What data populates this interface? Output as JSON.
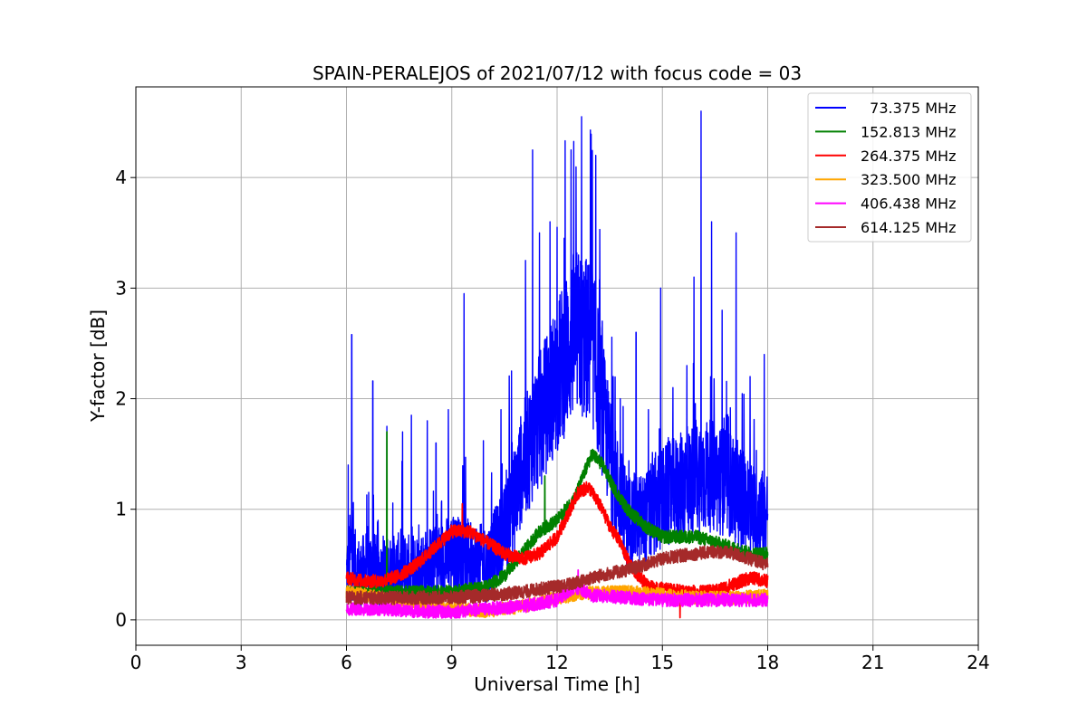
{
  "chart_data": {
    "type": "line",
    "title": "SPAIN-PERALEJOS of 2021/07/12 with focus code = 03",
    "xlabel": "Universal Time [h]",
    "ylabel": "Y-factor [dB]",
    "xlim": [
      0,
      24
    ],
    "ylim": [
      -0.23,
      4.82
    ],
    "xticks": [
      0,
      3,
      6,
      9,
      12,
      15,
      18,
      21,
      24
    ],
    "yticks": [
      0,
      1,
      2,
      3,
      4
    ],
    "grid": true,
    "legend_position": "upper right",
    "series": [
      {
        "name": "  73.375 MHz",
        "color": "#0000ff",
        "x": [
          6.0,
          6.1,
          6.2,
          6.4,
          6.6,
          6.8,
          7.0,
          7.5,
          8.0,
          8.5,
          9.0,
          9.5,
          10.0,
          10.5,
          10.8,
          11.0,
          11.5,
          12.0,
          12.5,
          13.0,
          13.3,
          13.6,
          14.0,
          14.5,
          15.0,
          15.5,
          16.0,
          16.5,
          17.0,
          17.5,
          18.0
        ],
        "values": [
          0.4,
          0.6,
          0.5,
          0.4,
          0.5,
          0.45,
          0.4,
          0.45,
          0.45,
          0.5,
          0.6,
          0.55,
          0.5,
          0.8,
          1.1,
          1.4,
          1.8,
          2.2,
          2.6,
          2.5,
          1.9,
          1.3,
          0.9,
          0.9,
          1.1,
          1.2,
          1.3,
          1.3,
          1.2,
          1.0,
          0.9
        ],
        "spikes": [
          [
            6.05,
            1.4
          ],
          [
            6.15,
            2.58
          ],
          [
            6.75,
            2.16
          ],
          [
            6.9,
            0.9
          ],
          [
            7.15,
            1.75
          ],
          [
            7.6,
            1.7
          ],
          [
            7.85,
            1.85
          ],
          [
            8.3,
            1.8
          ],
          [
            8.55,
            1.6
          ],
          [
            8.9,
            1.9
          ],
          [
            9.35,
            2.95
          ],
          [
            9.9,
            1.62
          ],
          [
            10.4,
            1.9
          ],
          [
            10.7,
            2.25
          ],
          [
            11.1,
            3.25
          ],
          [
            11.3,
            4.25
          ],
          [
            11.5,
            3.5
          ],
          [
            11.8,
            3.6
          ],
          [
            12.0,
            3.55
          ],
          [
            12.2,
            3.45
          ],
          [
            12.4,
            4.25
          ],
          [
            12.7,
            4.55
          ],
          [
            12.95,
            4.43
          ],
          [
            13.1,
            4.2
          ],
          [
            13.6,
            2.2
          ],
          [
            13.8,
            2.0
          ],
          [
            14.25,
            2.6
          ],
          [
            14.6,
            1.9
          ],
          [
            14.95,
            3.0
          ],
          [
            15.3,
            2.1
          ],
          [
            15.7,
            2.3
          ],
          [
            15.9,
            3.1
          ],
          [
            16.1,
            4.6
          ],
          [
            16.4,
            3.6
          ],
          [
            16.7,
            2.8
          ],
          [
            17.1,
            3.5
          ],
          [
            17.5,
            2.2
          ],
          [
            17.9,
            2.4
          ]
        ]
      },
      {
        "name": "152.813 MHz",
        "color": "#008000",
        "x": [
          6.0,
          7.0,
          8.0,
          9.0,
          10.0,
          10.5,
          11.0,
          11.5,
          12.0,
          12.5,
          12.8,
          13.0,
          13.3,
          13.6,
          14.0,
          14.5,
          15.0,
          15.5,
          16.0,
          16.5,
          17.0,
          17.5,
          18.0
        ],
        "values": [
          0.25,
          0.25,
          0.25,
          0.25,
          0.3,
          0.4,
          0.6,
          0.8,
          0.9,
          1.1,
          1.35,
          1.5,
          1.4,
          1.2,
          1.0,
          0.85,
          0.75,
          0.75,
          0.75,
          0.7,
          0.65,
          0.6,
          0.6
        ],
        "spikes": [
          [
            7.15,
            1.7
          ],
          [
            11.65,
            1.3
          ],
          [
            12.5,
            1.05
          ]
        ]
      },
      {
        "name": "264.375 MHz",
        "color": "#ff0000",
        "x": [
          6.0,
          6.5,
          7.0,
          7.5,
          8.0,
          8.5,
          9.0,
          9.5,
          10.0,
          10.5,
          11.0,
          11.5,
          12.0,
          12.3,
          12.6,
          12.9,
          13.2,
          13.5,
          13.8,
          14.0,
          14.3,
          14.6,
          15.0,
          15.5,
          16.0,
          16.5,
          17.0,
          17.5,
          18.0
        ],
        "values": [
          0.38,
          0.35,
          0.35,
          0.4,
          0.5,
          0.65,
          0.8,
          0.8,
          0.7,
          0.6,
          0.55,
          0.6,
          0.75,
          0.95,
          1.15,
          1.2,
          1.05,
          0.85,
          0.7,
          0.55,
          0.4,
          0.3,
          0.28,
          0.26,
          0.25,
          0.26,
          0.32,
          0.38,
          0.35
        ],
        "spikes": [
          [
            9.3,
            1.05
          ],
          [
            15.5,
            0.02
          ]
        ]
      },
      {
        "name": "323.500 MHz",
        "color": "#ffa500",
        "x": [
          6.0,
          7.0,
          8.0,
          9.0,
          10.0,
          11.0,
          12.0,
          13.0,
          14.0,
          15.0,
          16.0,
          17.0,
          18.0
        ],
        "values": [
          0.25,
          0.2,
          0.15,
          0.1,
          0.08,
          0.12,
          0.2,
          0.25,
          0.25,
          0.23,
          0.2,
          0.2,
          0.22
        ],
        "spikes": []
      },
      {
        "name": "406.438 MHz",
        "color": "#ff00ff",
        "x": [
          6.0,
          7.0,
          8.0,
          9.0,
          10.0,
          11.0,
          12.0,
          12.5,
          13.0,
          14.0,
          15.0,
          16.0,
          17.0,
          18.0
        ],
        "values": [
          0.1,
          0.1,
          0.08,
          0.07,
          0.1,
          0.12,
          0.18,
          0.3,
          0.22,
          0.2,
          0.18,
          0.18,
          0.18,
          0.18
        ],
        "spikes": [
          [
            12.6,
            0.45
          ]
        ]
      },
      {
        "name": "614.125 MHz",
        "color": "#a52a2a",
        "x": [
          6.0,
          7.0,
          8.0,
          9.0,
          10.0,
          11.0,
          11.5,
          12.0,
          12.5,
          13.0,
          13.5,
          14.0,
          14.5,
          15.0,
          15.5,
          16.0,
          16.5,
          17.0,
          17.5,
          18.0
        ],
        "values": [
          0.2,
          0.2,
          0.2,
          0.2,
          0.22,
          0.25,
          0.28,
          0.3,
          0.33,
          0.38,
          0.42,
          0.45,
          0.5,
          0.55,
          0.58,
          0.6,
          0.62,
          0.6,
          0.55,
          0.5
        ],
        "spikes": []
      }
    ]
  }
}
